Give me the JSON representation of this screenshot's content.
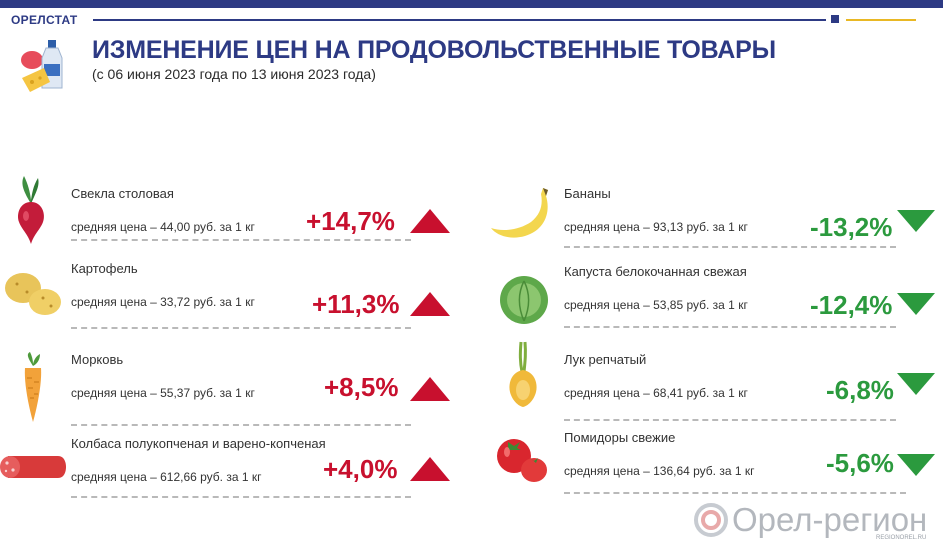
{
  "header": {
    "brand": "ОРЕЛСТАТ",
    "title": "ИЗМЕНЕНИЕ ЦЕН НА ПРОДОВОЛЬСТВЕННЫЕ ТОВАРЫ",
    "subtitle": "(с 06 июня 2023 года по 13 июня 2023 года)"
  },
  "colors": {
    "brand_blue": "#2d3a84",
    "accent_gold": "#e9b824",
    "increase": "#c8102e",
    "decrease": "#2b9a3e"
  },
  "left_items": [
    {
      "icon": "beet-icon",
      "name": "Свекла столовая",
      "price": "средняя цена – 44,00 руб. за 1 кг",
      "change": "+14,7%",
      "direction": "up"
    },
    {
      "icon": "potato-icon",
      "name": "Картофель",
      "price": "средняя цена – 33,72 руб. за 1 кг",
      "change": "+11,3%",
      "direction": "up"
    },
    {
      "icon": "carrot-icon",
      "name": "Морковь",
      "price": "средняя цена – 55,37 руб. за 1 кг",
      "change": "+8,5%",
      "direction": "up"
    },
    {
      "icon": "sausage-icon",
      "name": "Колбаса полукопченая и варено-копченая",
      "price": "средняя цена – 612,66 руб. за 1 кг",
      "change": "+4,0%",
      "direction": "up"
    }
  ],
  "right_items": [
    {
      "icon": "banana-icon",
      "name": "Бананы",
      "price": "средняя цена – 93,13 руб. за 1 кг",
      "change": "-13,2%",
      "direction": "down"
    },
    {
      "icon": "cabbage-icon",
      "name": "Капуста белокочанная свежая",
      "price": "средняя цена –  53,85 руб.  за  1 кг",
      "change": "-12,4%",
      "direction": "down"
    },
    {
      "icon": "onion-icon",
      "name": "Лук репчатый",
      "price": "средняя цена – 68,41 руб. за 1 кг",
      "change": "-6,8%",
      "direction": "down"
    },
    {
      "icon": "tomato-icon",
      "name": "Помидоры свежие",
      "price": "средняя цена – 136,64 руб. за 1 кг",
      "change": "-5,6%",
      "direction": "down"
    }
  ],
  "watermark": {
    "text": "Орел-регион",
    "sub": "REGIONOREL.RU"
  }
}
